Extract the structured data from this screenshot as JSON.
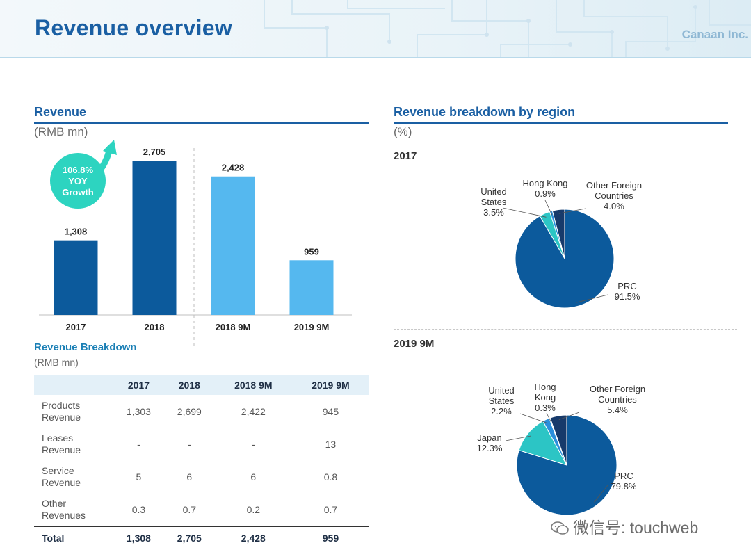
{
  "page": {
    "title": "Revenue overview",
    "brand": "Canaan Inc."
  },
  "revenue_section": {
    "title": "Revenue",
    "unit": "(RMB mn)",
    "growth_badge": [
      "106.8%",
      "YOY",
      "Growth"
    ]
  },
  "breakdown_section": {
    "title": "Revenue Breakdown",
    "unit": "(RMB mn)",
    "columns": [
      "",
      "2017",
      "2018",
      "2018 9M",
      "2019 9M"
    ],
    "rows": [
      {
        "label": [
          "Products",
          "Revenue"
        ],
        "values": [
          "1,303",
          "2,699",
          "2,422",
          "945"
        ]
      },
      {
        "label": [
          "Leases",
          "Revenue"
        ],
        "values": [
          "-",
          "-",
          "-",
          "13"
        ]
      },
      {
        "label": [
          "Service",
          "Revenue"
        ],
        "values": [
          "5",
          "6",
          "6",
          "0.8"
        ]
      },
      {
        "label": [
          "Other",
          "Revenues"
        ],
        "values": [
          "0.3",
          "0.7",
          "0.2",
          "0.7"
        ]
      }
    ],
    "total": {
      "label": "Total",
      "values": [
        "1,308",
        "2,705",
        "2,428",
        "959"
      ]
    }
  },
  "region_section": {
    "title": "Revenue breakdown by region",
    "unit": "(%)",
    "pie_2017_label": "2017",
    "pie_2019_label": "2019 9M"
  },
  "watermark": "微信号: touchweb",
  "colors": {
    "dark_blue": "#0c5a9c",
    "light_blue": "#55b8ef",
    "teal": "#2cc5c5",
    "mid_blue": "#2a8fdc",
    "navy": "#173a6b",
    "title_blue": "#1a5fa3"
  },
  "chart_data": [
    {
      "type": "bar",
      "title": "Revenue",
      "categories": [
        "2017",
        "2018",
        "2018 9M",
        "2019 9M"
      ],
      "values": [
        1308,
        2705,
        2428,
        959
      ],
      "data_labels": [
        "1,308",
        "2,705",
        "2,428",
        "959"
      ],
      "bar_colors": [
        "#0c5a9c",
        "#0c5a9c",
        "#55b8ef",
        "#55b8ef"
      ],
      "ylim": [
        0,
        2900
      ],
      "grid": false
    },
    {
      "type": "pie",
      "title": "2017",
      "slices": [
        {
          "label": "PRC",
          "value": 91.5,
          "label_text": [
            "PRC",
            "91.5%"
          ],
          "color": "#0c5a9c"
        },
        {
          "label": "United States",
          "value": 3.5,
          "label_text": [
            "United",
            "States",
            "3.5%"
          ],
          "color": "#2cc5c5"
        },
        {
          "label": "Hong Kong",
          "value": 0.9,
          "label_text": [
            "Hong Kong",
            "0.9%"
          ],
          "color": "#2a8fdc"
        },
        {
          "label": "Other Foreign Countries",
          "value": 4.0,
          "label_text": [
            "Other Foreign",
            "Countries",
            "4.0%"
          ],
          "color": "#173a6b"
        }
      ]
    },
    {
      "type": "pie",
      "title": "2019 9M",
      "slices": [
        {
          "label": "PRC",
          "value": 79.8,
          "label_text": [
            "PRC",
            "79.8%"
          ],
          "color": "#0c5a9c"
        },
        {
          "label": "Japan",
          "value": 12.3,
          "label_text": [
            "Japan",
            "12.3%"
          ],
          "color": "#2cc5c5"
        },
        {
          "label": "United States",
          "value": 2.2,
          "label_text": [
            "United",
            "States",
            "2.2%"
          ],
          "color": "#2a8fdc"
        },
        {
          "label": "Hong Kong",
          "value": 0.3,
          "label_text": [
            "Hong",
            "Kong",
            "0.3%"
          ],
          "color": "#7fd0ff"
        },
        {
          "label": "Other Foreign Countries",
          "value": 5.4,
          "label_text": [
            "Other Foreign",
            "Countries",
            "5.4%"
          ],
          "color": "#173a6b"
        }
      ]
    }
  ]
}
